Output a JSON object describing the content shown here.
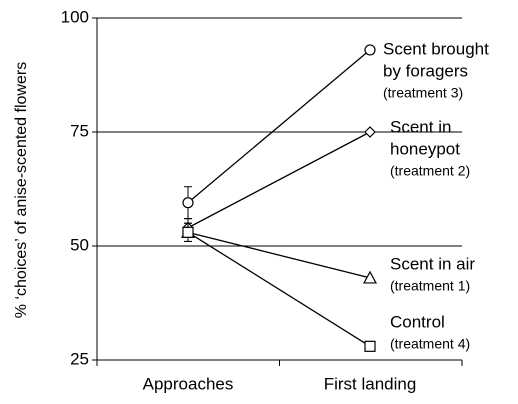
{
  "chart_data": {
    "type": "line",
    "y_label": "% ‘choices’ of anise-scented flowers",
    "categories": [
      "Approaches",
      "First landing"
    ],
    "ylim": [
      25,
      100
    ],
    "yticks": [
      25,
      50,
      75,
      100
    ],
    "grid": true,
    "series": [
      {
        "name": [
          "Scent brought",
          "by foragers",
          "(treatment 3)"
        ],
        "marker": "circle",
        "color": "#000000",
        "values": [
          59.5,
          93
        ],
        "errors": [
          3.5,
          null
        ]
      },
      {
        "name": [
          "Scent in",
          "honeypot",
          "(treatment 2)"
        ],
        "marker": "diamond",
        "color": "#000000",
        "values": [
          54,
          75
        ],
        "errors": [
          2,
          null
        ]
      },
      {
        "name": [
          "Scent in air",
          "(treatment 1)"
        ],
        "marker": "triangle",
        "color": "#000000",
        "values": [
          53,
          43
        ],
        "errors": [
          2,
          null
        ]
      },
      {
        "name": [
          "Control",
          "(treatment 4)"
        ],
        "marker": "square",
        "color": "#000000",
        "values": [
          53,
          28
        ],
        "errors": [
          2,
          null
        ]
      }
    ]
  }
}
